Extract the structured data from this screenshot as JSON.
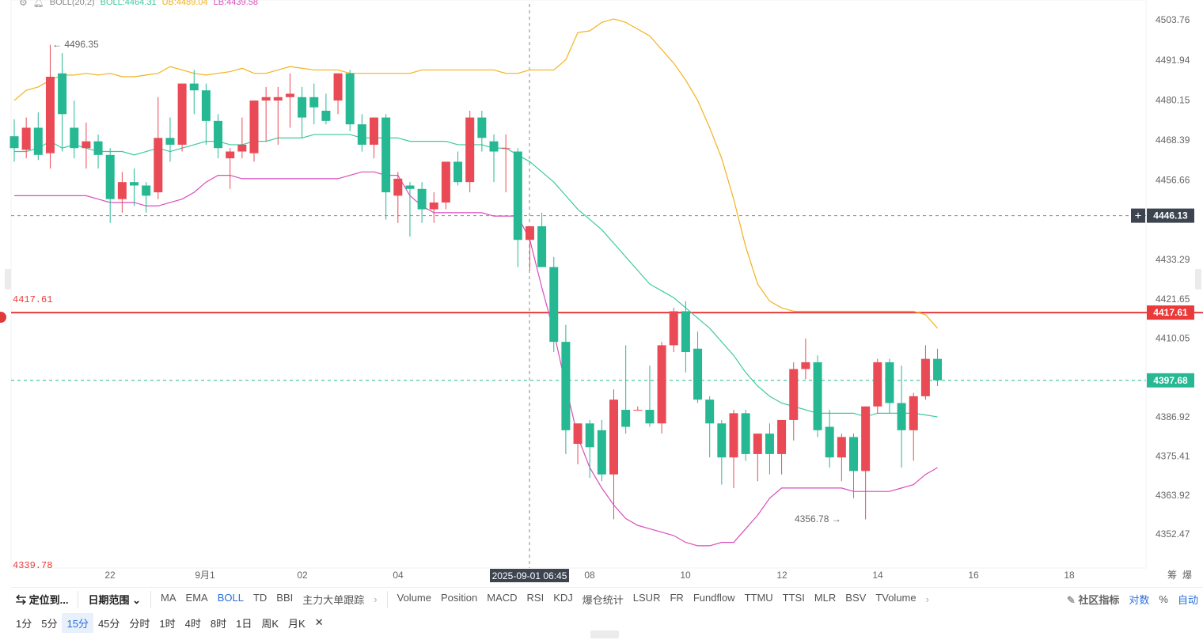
{
  "legend": {
    "indicator": "BOLL(20,2)",
    "boll": "BOLL:4464.31",
    "ub": "UB:4489.04",
    "lb": "LB:4439.58"
  },
  "colors": {
    "up": "#ea4a56",
    "down": "#26b893",
    "mid": "#3ccaa0",
    "upper": "#f2b21d",
    "lower": "#d94dbd",
    "ref_line": "#ea3a3a",
    "accent": "#2a6fdb"
  },
  "chart_data": {
    "type": "candlestick",
    "y_ticks": [
      "4503.76",
      "4491.94",
      "4480.15",
      "4468.39",
      "4456.66",
      "4433.29",
      "4421.65",
      "4410.05",
      "4386.92",
      "4375.41",
      "4363.92",
      "4352.47"
    ],
    "ylim": [
      4340,
      4508
    ],
    "x_tick_labels": [
      "22",
      "9月1",
      "02",
      "04",
      "08",
      "10",
      "12",
      "14",
      "16",
      "18"
    ],
    "crosshair_time": "2025-09-01 06:45",
    "crosshair_price": "4446.13",
    "current_price": "4397.68",
    "ref_line": {
      "left_label": "4417.61",
      "right_label": "4417.61",
      "value": 4417.61
    },
    "bottom_left_label": "4339.78",
    "high_marker": "4496.35",
    "low_marker": "4356.78",
    "candles": [
      {
        "o": 4469.5,
        "h": 4474.5,
        "l": 4462,
        "c": 4466
      },
      {
        "o": 4465.5,
        "h": 4475,
        "l": 4463,
        "c": 4472
      },
      {
        "o": 4472,
        "h": 4476.5,
        "l": 4462.5,
        "c": 4464
      },
      {
        "o": 4464.5,
        "h": 4496.4,
        "l": 4460,
        "c": 4487
      },
      {
        "o": 4488,
        "h": 4494,
        "l": 4465,
        "c": 4476
      },
      {
        "o": 4472,
        "h": 4480,
        "l": 4463,
        "c": 4466
      },
      {
        "o": 4466,
        "h": 4473.5,
        "l": 4460,
        "c": 4468
      },
      {
        "o": 4468,
        "h": 4470,
        "l": 4460,
        "c": 4464
      },
      {
        "o": 4464,
        "h": 4466,
        "l": 4444,
        "c": 4451
      },
      {
        "o": 4451,
        "h": 4459,
        "l": 4447,
        "c": 4456
      },
      {
        "o": 4456,
        "h": 4460,
        "l": 4449,
        "c": 4455
      },
      {
        "o": 4455,
        "h": 4456,
        "l": 4447,
        "c": 4452
      },
      {
        "o": 4453,
        "h": 4481,
        "l": 4451,
        "c": 4469
      },
      {
        "o": 4469,
        "h": 4475,
        "l": 4462,
        "c": 4467
      },
      {
        "o": 4467,
        "h": 4485,
        "l": 4465,
        "c": 4485
      },
      {
        "o": 4485,
        "h": 4489,
        "l": 4476,
        "c": 4483
      },
      {
        "o": 4483,
        "h": 4485,
        "l": 4467,
        "c": 4474
      },
      {
        "o": 4474,
        "h": 4476,
        "l": 4463,
        "c": 4466
      },
      {
        "o": 4463,
        "h": 4466,
        "l": 4454,
        "c": 4465
      },
      {
        "o": 4465,
        "h": 4475,
        "l": 4463,
        "c": 4467
      },
      {
        "o": 4464.5,
        "h": 4480,
        "l": 4462,
        "c": 4480
      },
      {
        "o": 4480,
        "h": 4484,
        "l": 4468,
        "c": 4481
      },
      {
        "o": 4480,
        "h": 4484,
        "l": 4467,
        "c": 4481
      },
      {
        "o": 4481,
        "h": 4488,
        "l": 4472,
        "c": 4482
      },
      {
        "o": 4481,
        "h": 4484,
        "l": 4469,
        "c": 4475
      },
      {
        "o": 4481,
        "h": 4485,
        "l": 4473,
        "c": 4478
      },
      {
        "o": 4477,
        "h": 4482,
        "l": 4473,
        "c": 4474
      },
      {
        "o": 4480,
        "h": 4488,
        "l": 4476,
        "c": 4488
      },
      {
        "o": 4488,
        "h": 4489,
        "l": 4471,
        "c": 4473
      },
      {
        "o": 4473,
        "h": 4476,
        "l": 4465,
        "c": 4467
      },
      {
        "o": 4467,
        "h": 4475,
        "l": 4463,
        "c": 4475
      },
      {
        "o": 4475,
        "h": 4476,
        "l": 4445,
        "c": 4453
      },
      {
        "o": 4452,
        "h": 4459,
        "l": 4444,
        "c": 4457
      },
      {
        "o": 4455,
        "h": 4456,
        "l": 4440,
        "c": 4454
      },
      {
        "o": 4454,
        "h": 4456,
        "l": 4444,
        "c": 4448
      },
      {
        "o": 4448,
        "h": 4453,
        "l": 4444,
        "c": 4450
      },
      {
        "o": 4450,
        "h": 4462,
        "l": 4448,
        "c": 4462
      },
      {
        "o": 4462,
        "h": 4465,
        "l": 4455,
        "c": 4456
      },
      {
        "o": 4456,
        "h": 4477,
        "l": 4453,
        "c": 4475
      },
      {
        "o": 4475,
        "h": 4477,
        "l": 4465,
        "c": 4469
      },
      {
        "o": 4468,
        "h": 4470,
        "l": 4456,
        "c": 4465
      },
      {
        "o": 4466,
        "h": 4470,
        "l": 4453,
        "c": 4466
      },
      {
        "o": 4465,
        "h": 4466,
        "l": 4431,
        "c": 4439
      },
      {
        "o": 4439,
        "h": 4443,
        "l": 4430,
        "c": 4443
      },
      {
        "o": 4443,
        "h": 4447,
        "l": 4431,
        "c": 4431
      },
      {
        "o": 4431,
        "h": 4434,
        "l": 4406,
        "c": 4409
      },
      {
        "o": 4409,
        "h": 4414,
        "l": 4376,
        "c": 4383
      },
      {
        "o": 4379,
        "h": 4385,
        "l": 4373,
        "c": 4385
      },
      {
        "o": 4385,
        "h": 4386,
        "l": 4369,
        "c": 4378
      },
      {
        "o": 4383,
        "h": 4386,
        "l": 4368,
        "c": 4370
      },
      {
        "o": 4370,
        "h": 4395,
        "l": 4356.8,
        "c": 4392
      },
      {
        "o": 4389,
        "h": 4408,
        "l": 4382,
        "c": 4384
      },
      {
        "o": 4389,
        "h": 4390,
        "l": 4389,
        "c": 4389
      },
      {
        "o": 4389,
        "h": 4402,
        "l": 4384,
        "c": 4385
      },
      {
        "o": 4385,
        "h": 4409,
        "l": 4382,
        "c": 4408
      },
      {
        "o": 4408,
        "h": 4419,
        "l": 4406,
        "c": 4418
      },
      {
        "o": 4418,
        "h": 4421,
        "l": 4400,
        "c": 4406
      },
      {
        "o": 4407,
        "h": 4412,
        "l": 4391,
        "c": 4392
      },
      {
        "o": 4392,
        "h": 4393,
        "l": 4375,
        "c": 4385
      },
      {
        "o": 4385,
        "h": 4386,
        "l": 4367,
        "c": 4375
      },
      {
        "o": 4375,
        "h": 4389,
        "l": 4366,
        "c": 4388
      },
      {
        "o": 4388,
        "h": 4389,
        "l": 4374,
        "c": 4376
      },
      {
        "o": 4376,
        "h": 4381,
        "l": 4368,
        "c": 4382
      },
      {
        "o": 4382,
        "h": 4385,
        "l": 4370,
        "c": 4376
      },
      {
        "o": 4376,
        "h": 4386,
        "l": 4370,
        "c": 4386
      },
      {
        "o": 4386,
        "h": 4403,
        "l": 4380,
        "c": 4401
      },
      {
        "o": 4401,
        "h": 4410,
        "l": 4398,
        "c": 4403
      },
      {
        "o": 4403,
        "h": 4405,
        "l": 4381,
        "c": 4383
      },
      {
        "o": 4384,
        "h": 4389,
        "l": 4372,
        "c": 4375
      },
      {
        "o": 4375,
        "h": 4382,
        "l": 4368,
        "c": 4381
      },
      {
        "o": 4381,
        "h": 4382,
        "l": 4363,
        "c": 4371
      },
      {
        "o": 4371,
        "h": 4390,
        "l": 4356.78,
        "c": 4390
      },
      {
        "o": 4390,
        "h": 4404,
        "l": 4388,
        "c": 4403
      },
      {
        "o": 4403,
        "h": 4404,
        "l": 4388,
        "c": 4391
      },
      {
        "o": 4391,
        "h": 4402,
        "l": 4372,
        "c": 4383
      },
      {
        "o": 4383,
        "h": 4394,
        "l": 4374,
        "c": 4393
      },
      {
        "o": 4393,
        "h": 4408,
        "l": 4392,
        "c": 4404
      },
      {
        "o": 4404,
        "h": 4407,
        "l": 4396,
        "c": 4397.68
      }
    ],
    "boll_mid": [
      4465,
      4465,
      4466,
      4468,
      4466,
      4467,
      4466,
      4465,
      4465,
      4465,
      4464,
      4465,
      4466,
      4465,
      4466,
      4467,
      4468,
      4468,
      4467,
      4467,
      4468,
      4468,
      4469,
      4469,
      4469,
      4470,
      4470,
      4470,
      4470,
      4469,
      4469,
      4469,
      4469,
      4468,
      4468,
      4468,
      4468,
      4467,
      4467,
      4467,
      4466,
      4466,
      4464,
      4462,
      4459,
      4456,
      4452,
      4448,
      4445,
      4442,
      4438,
      4434,
      4430,
      4426,
      4424,
      4422,
      4419,
      4416,
      4413,
      4409,
      4405,
      4400,
      4396,
      4393,
      4391,
      4390,
      4389,
      4388,
      4388,
      4388,
      4388,
      4387,
      4388,
      4388,
      4388,
      4388,
      4387.5,
      4386.9
    ],
    "boll_upper": [
      4480,
      4483,
      4484,
      4486,
      4487.5,
      4487.5,
      4488,
      4487.5,
      4488,
      4487,
      4487,
      4487.5,
      4488,
      4490,
      4489,
      4488,
      4487.5,
      4488,
      4488.5,
      4489.5,
      4488,
      4488,
      4489,
      4490,
      4489.5,
      4489,
      4489,
      4489,
      4488,
      4488,
      4488,
      4488,
      4488,
      4488,
      4489,
      4489,
      4489,
      4489,
      4489,
      4489,
      4489,
      4488,
      4488,
      4489,
      4489,
      4489,
      4492,
      4500,
      4500.5,
      4503,
      4504,
      4503,
      4501,
      4499,
      4495,
      4491,
      4486,
      4480,
      4472,
      4463,
      4451,
      4437,
      4426,
      4421,
      4419,
      4418,
      4418,
      4418,
      4418,
      4418,
      4418,
      4418,
      4418,
      4418,
      4418,
      4418,
      4417,
      4413
    ],
    "boll_lower": [
      4452,
      4452,
      4452,
      4452,
      4452,
      4452,
      4452,
      4451,
      4450,
      4450,
      4450,
      4449,
      4449,
      4450,
      4451,
      4453,
      4456,
      4458,
      4458,
      4457,
      4457,
      4457,
      4457,
      4457,
      4457,
      4457,
      4457,
      4457,
      4458,
      4459,
      4459,
      4458,
      4458,
      4452,
      4449,
      4447,
      4447,
      4447,
      4447,
      4447,
      4446,
      4446,
      4446,
      4439,
      4425,
      4412,
      4396,
      4381,
      4372,
      4366,
      4361,
      4357,
      4355,
      4354,
      4353,
      4352,
      4350,
      4349,
      4349,
      4350,
      4350,
      4354,
      4358,
      4363,
      4366,
      4366,
      4366,
      4366,
      4366,
      4366,
      4365,
      4365,
      4365,
      4365,
      4366,
      4367,
      4370,
      4372
    ]
  },
  "toolbar": {
    "locate": "定位到...",
    "date_range": "日期范围",
    "main_indicators": [
      "MA",
      "EMA",
      "BOLL",
      "TD",
      "BBI",
      "主力大单跟踪"
    ],
    "sub_indicators": [
      "Volume",
      "Position",
      "MACD",
      "RSI",
      "KDJ",
      "爆仓统计",
      "LSUR",
      "FR",
      "Fundflow",
      "TTMU",
      "TTSI",
      "MLR",
      "BSV",
      "TVolume"
    ],
    "community": "社区指标",
    "log_scale": "对数",
    "percent": "%",
    "auto": "自动"
  },
  "timeframes": [
    "1分",
    "5分",
    "15分",
    "45分",
    "分时",
    "1时",
    "4时",
    "8时",
    "1日",
    "周K",
    "月K"
  ],
  "active_timeframe": "15分",
  "corner_labels": [
    "筹",
    "爆"
  ]
}
